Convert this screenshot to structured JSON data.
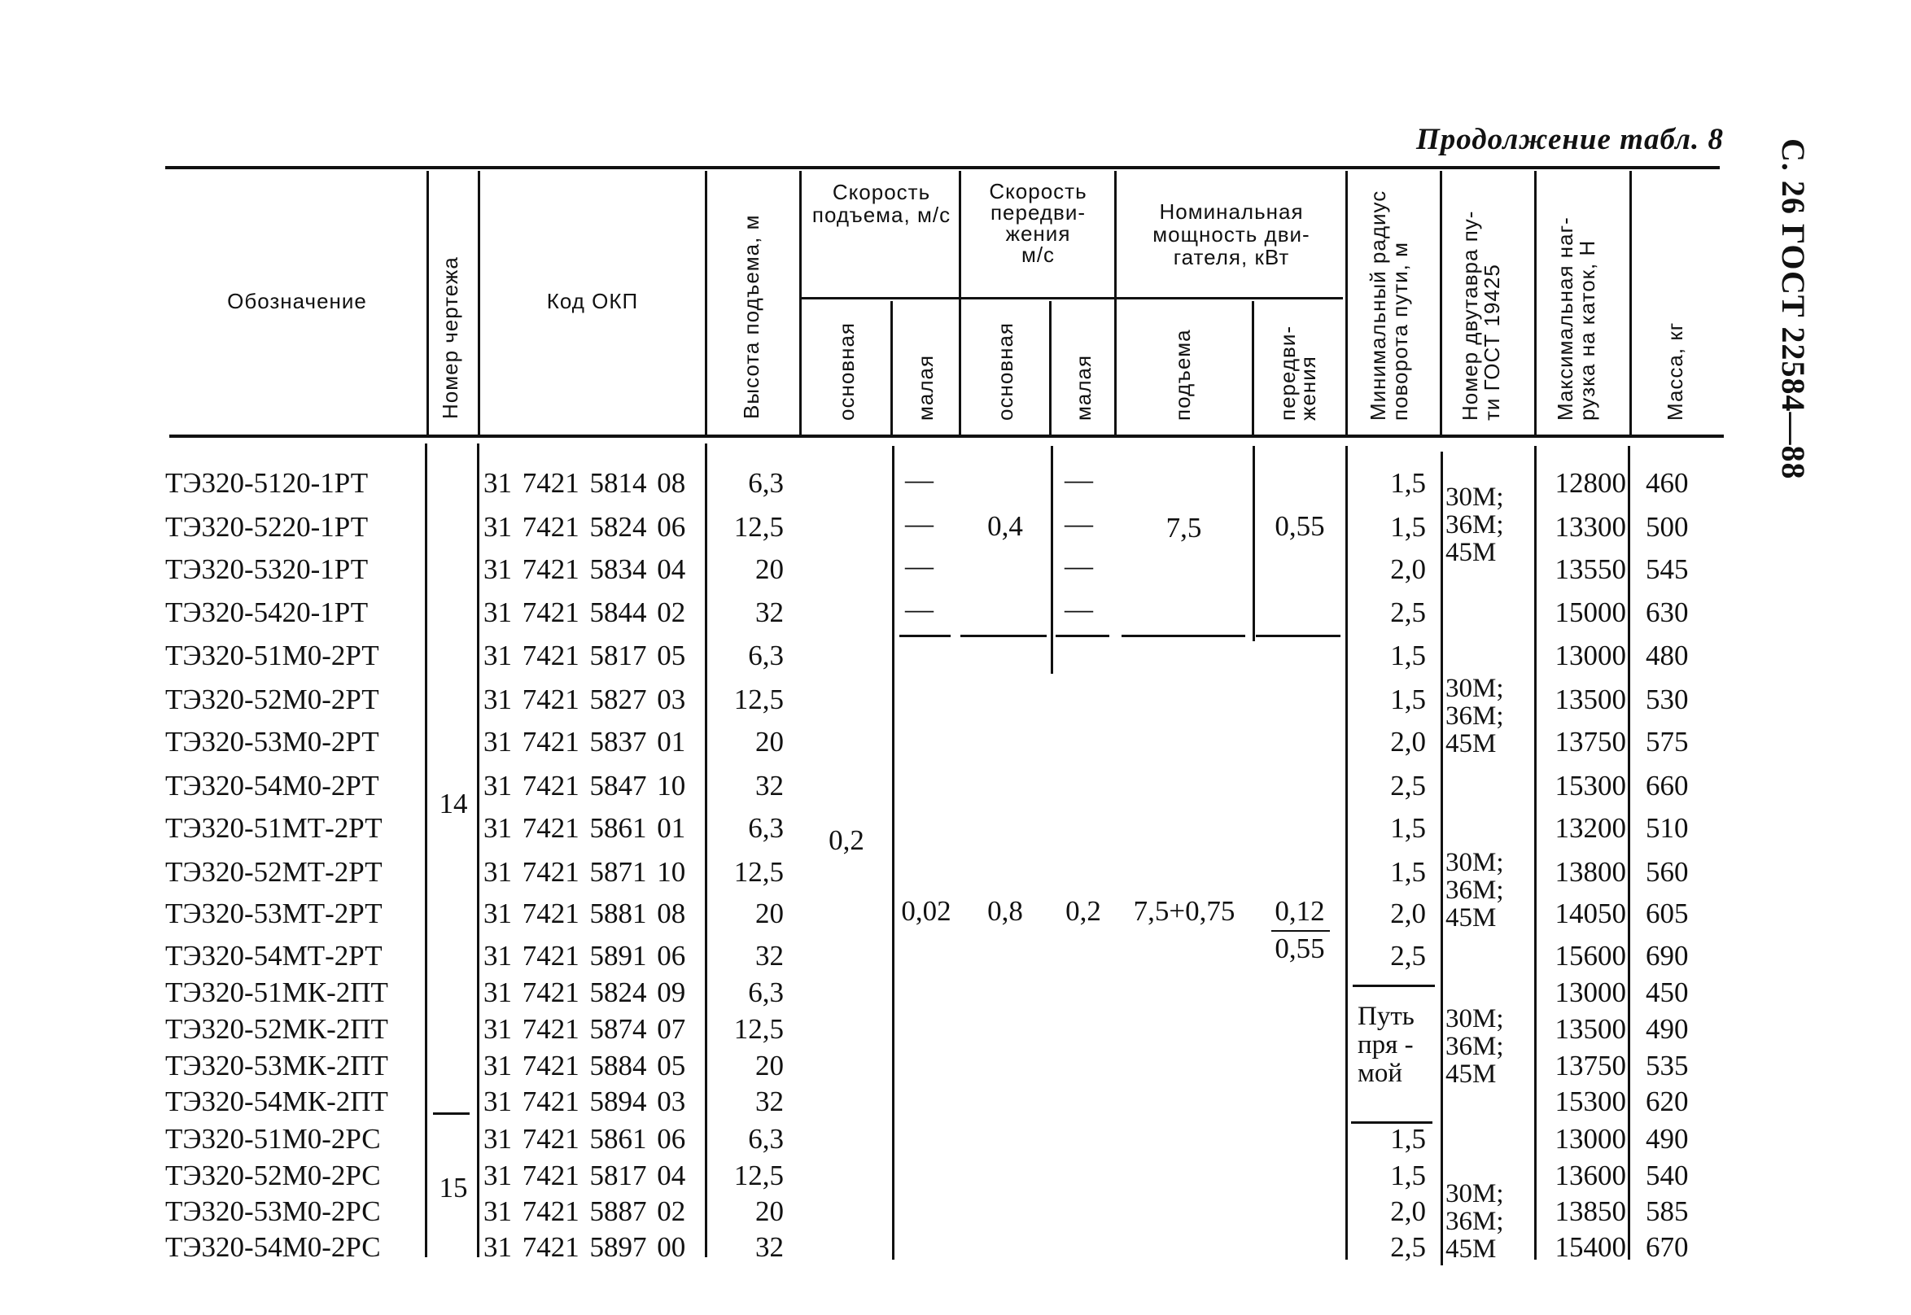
{
  "page": {
    "title": "Продолжение табл. 8",
    "side_header": "С. 26 ГОСТ 22584—88"
  },
  "header": {
    "designation": "Обозначение",
    "drawing_number": "Номер чертежа",
    "okp_code": "Код ОКП",
    "lift_height": "Высота подъема, м",
    "lift_speed": "Скорость подъема, м/с",
    "lift_speed_main": "основная",
    "lift_speed_low": "малая",
    "travel_speed": "Скорость передви-\nжения\nм/с",
    "travel_speed_main": "основная",
    "travel_speed_low": "малая",
    "motor_power": "Номинальная мощность дви-\nгателя, кВт",
    "motor_power_lift": "подъема",
    "motor_power_travel": "передви-\nжения",
    "min_radius": "Минимальный радиус\nповорота пути, м",
    "beam_number": "Номер двутавра пу-\nти ГОСТ 19425",
    "max_load": "Максимальная наг-\nрузка на каток, Н",
    "mass": "Масса, кг"
  },
  "rows": [
    {
      "designation": "ТЭ320-5120-1РТ",
      "code": "31 7421 5814 08",
      "height": "6,3",
      "radius": "1,5",
      "load": "12800",
      "mass": "460"
    },
    {
      "designation": "ТЭ320-5220-1РТ",
      "code": "31 7421 5824 06",
      "height": "12,5",
      "radius": "1,5",
      "load": "13300",
      "mass": "500"
    },
    {
      "designation": "ТЭ320-5320-1РТ",
      "code": "31 7421 5834 04",
      "height": "20",
      "radius": "2,0",
      "load": "13550",
      "mass": "545"
    },
    {
      "designation": "ТЭ320-5420-1РТ",
      "code": "31 7421 5844 02",
      "height": "32",
      "radius": "2,5",
      "load": "15000",
      "mass": "630"
    },
    {
      "designation": "ТЭ320-51М0-2РТ",
      "code": "31 7421 5817 05",
      "height": "6,3",
      "radius": "1,5",
      "load": "13000",
      "mass": "480"
    },
    {
      "designation": "ТЭ320-52М0-2РТ",
      "code": "31 7421 5827 03",
      "height": "12,5",
      "radius": "1,5",
      "load": "13500",
      "mass": "530"
    },
    {
      "designation": "ТЭ320-53М0-2РТ",
      "code": "31 7421 5837 01",
      "height": "20",
      "radius": "2,0",
      "load": "13750",
      "mass": "575"
    },
    {
      "designation": "ТЭ320-54М0-2РТ",
      "code": "31 7421 5847 10",
      "height": "32",
      "radius": "2,5",
      "load": "15300",
      "mass": "660"
    },
    {
      "designation": "ТЭ320-51МТ-2РТ",
      "code": "31 7421 5861 01",
      "height": "6,3",
      "radius": "1,5",
      "load": "13200",
      "mass": "510"
    },
    {
      "designation": "ТЭ320-52МТ-2РТ",
      "code": "31 7421 5871 10",
      "height": "12,5",
      "radius": "1,5",
      "load": "13800",
      "mass": "560"
    },
    {
      "designation": "ТЭ320-53МТ-2РТ",
      "code": "31 7421 5881 08",
      "height": "20",
      "radius": "2,0",
      "load": "14050",
      "mass": "605"
    },
    {
      "designation": "ТЭ320-54МТ-2РТ",
      "code": "31 7421 5891 06",
      "height": "32",
      "radius": "2,5",
      "load": "15600",
      "mass": "690"
    },
    {
      "designation": "ТЭ320-51МК-2ПТ",
      "code": "31 7421 5824 09",
      "height": "6,3",
      "radius": "",
      "load": "13000",
      "mass": "450"
    },
    {
      "designation": "ТЭ320-52МК-2ПТ",
      "code": "31 7421 5874 07",
      "height": "12,5",
      "radius": "",
      "load": "13500",
      "mass": "490"
    },
    {
      "designation": "ТЭ320-53МК-2ПТ",
      "code": "31 7421 5884 05",
      "height": "20",
      "radius": "",
      "load": "13750",
      "mass": "535"
    },
    {
      "designation": "ТЭ320-54МК-2ПТ",
      "code": "31 7421 5894 03",
      "height": "32",
      "radius": "",
      "load": "15300",
      "mass": "620"
    },
    {
      "designation": "ТЭ320-51М0-2РС",
      "code": "31 7421 5861 06",
      "height": "6,3",
      "radius": "1,5",
      "load": "13000",
      "mass": "490"
    },
    {
      "designation": "ТЭ320-52М0-2РС",
      "code": "31 7421 5817 04",
      "height": "12,5",
      "radius": "1,5",
      "load": "13600",
      "mass": "540"
    },
    {
      "designation": "ТЭ320-53М0-2РС",
      "code": "31 7421 5887 02",
      "height": "20",
      "radius": "2,0",
      "load": "13850",
      "mass": "585"
    },
    {
      "designation": "ТЭ320-54М0-2РС",
      "code": "31 7421 5897 00",
      "height": "32",
      "radius": "2,5",
      "load": "15400",
      "mass": "670"
    }
  ],
  "merged": {
    "drawing_14": "14",
    "drawing_15": "15",
    "lift_speed_main": "0,2",
    "dash": "—",
    "group1": {
      "travel_speed_main": "0,4",
      "power_lift": "7,5",
      "power_travel": "0,55"
    },
    "group2": {
      "lift_speed_low": "0,02",
      "travel_speed_main": "0,8",
      "travel_speed_low": "0,2",
      "power_lift": "7,5+0,75",
      "power_travel_num": "0,12",
      "power_travel_den": "0,55"
    },
    "straight_track": "Путь\nпря -\nмой",
    "beam": "30М;\n36М;\n45М"
  }
}
